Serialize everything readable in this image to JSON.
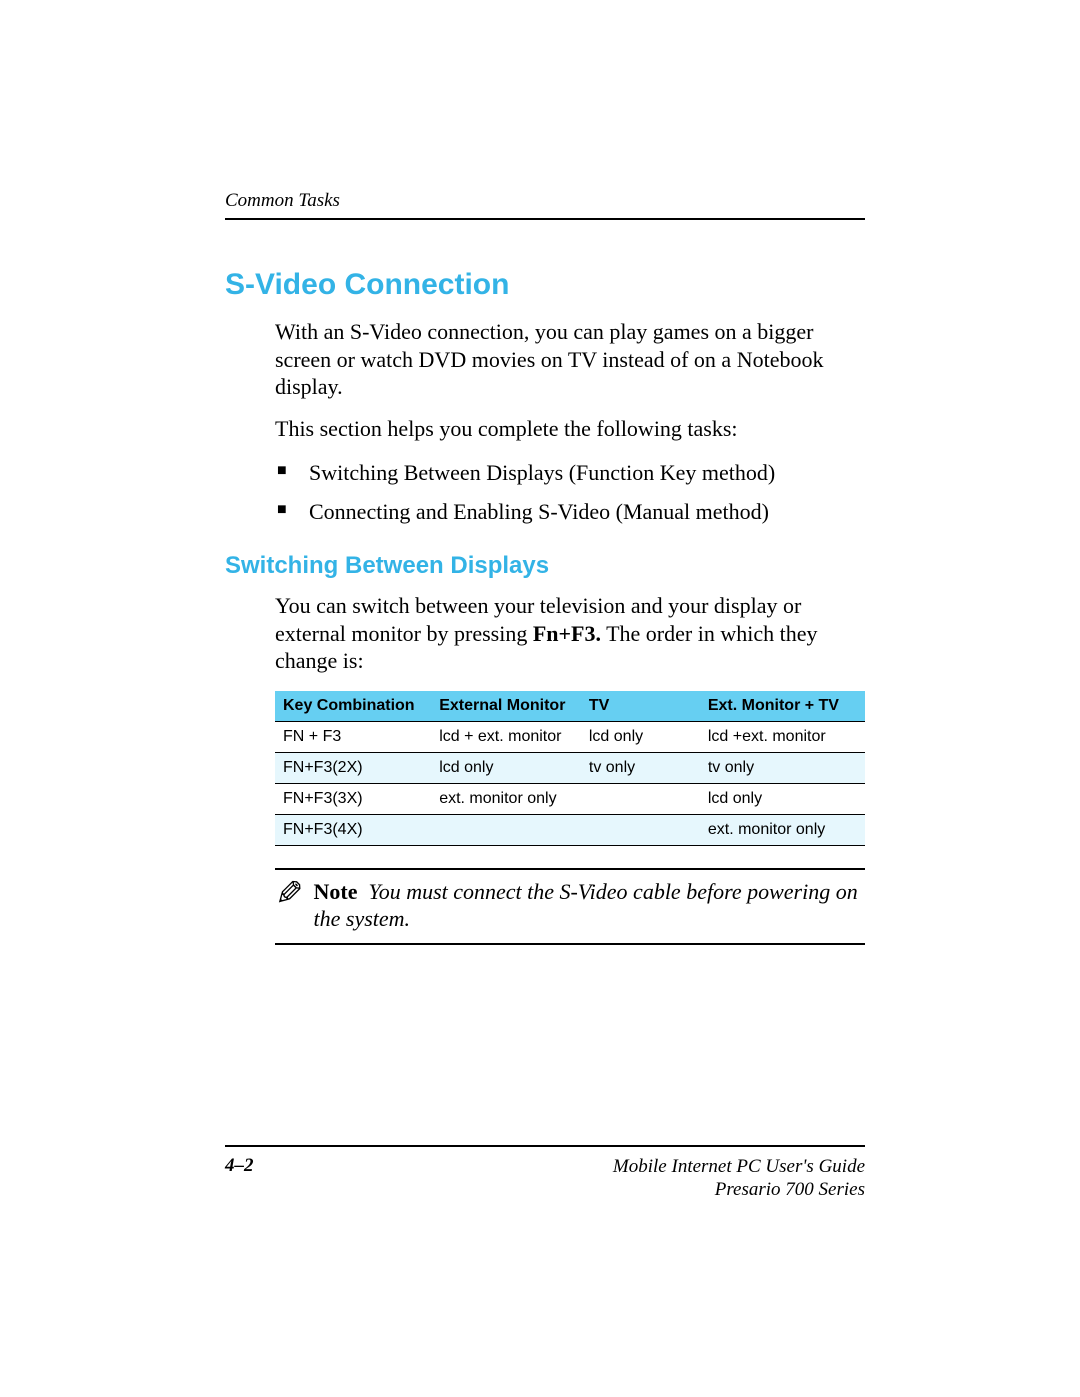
{
  "colors": {
    "heading": "#33b3e6",
    "tableHeaderBg": "#66cff2",
    "tableAltBg": "#e6f7fd",
    "text": "#000000",
    "background": "#ffffff"
  },
  "header": {
    "section": "Common Tasks"
  },
  "h1": "S-Video Connection",
  "p1": "With an S-Video connection, you can play games on a bigger screen or watch DVD movies on TV instead of on a Notebook display.",
  "p2": "This section helps you complete the following tasks:",
  "bullets": [
    "Switching Between Displays (Function Key method)",
    "Connecting and Enabling S-Video (Manual method)"
  ],
  "h2": "Switching Between Displays",
  "p3_pre": "You can switch between your television and your display or external monitor by pressing ",
  "p3_bold": "Fn+F3.",
  "p3_post": " The order in which they change is:",
  "table": {
    "columns": [
      "Key Combination",
      "External Monitor",
      "TV",
      "Ext. Monitor + TV"
    ],
    "rows": [
      [
        "FN + F3",
        "lcd + ext. monitor",
        "lcd only",
        "lcd +ext. monitor"
      ],
      [
        "FN+F3(2X)",
        "lcd only",
        "tv only",
        "tv only"
      ],
      [
        "FN+F3(3X)",
        "ext. monitor only",
        "",
        "lcd only"
      ],
      [
        "FN+F3(4X)",
        "",
        "",
        "ext. monitor only"
      ]
    ]
  },
  "note": {
    "label": "Note",
    "text": "You must connect the S-Video cable before powering on the system."
  },
  "footer": {
    "pageNum": "4–2",
    "title1": "Mobile Internet PC User's Guide",
    "title2": "Presario 700 Series"
  }
}
